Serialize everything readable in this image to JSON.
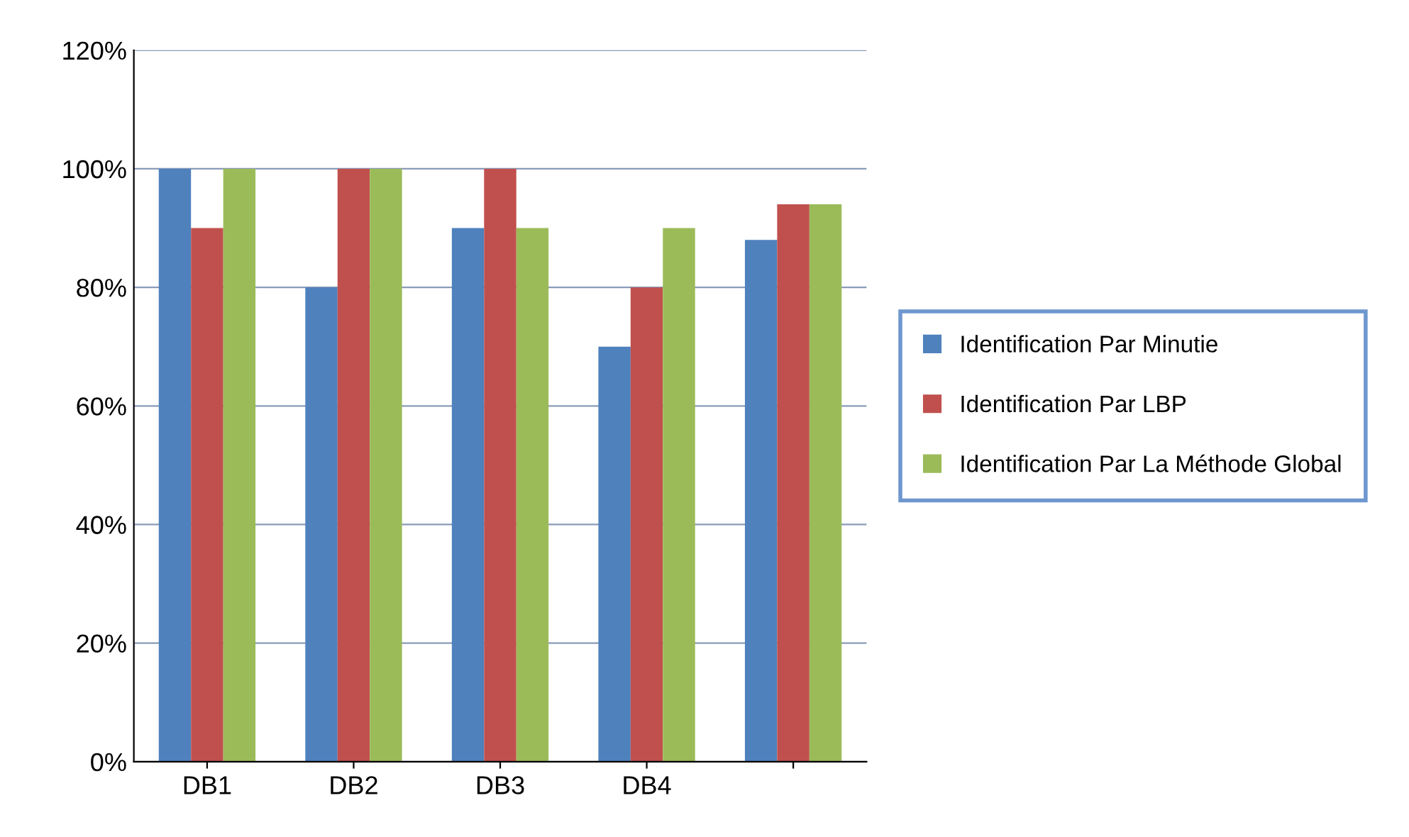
{
  "chart_data": {
    "type": "bar",
    "categories": [
      "DB1",
      "DB2",
      "DB3",
      "DB4",
      null
    ],
    "series": [
      {
        "name": "Identification Par Minutie",
        "color": "#4f81bd",
        "values": [
          100,
          80,
          90,
          70,
          88
        ]
      },
      {
        "name": "Identification Par LBP",
        "color": "#c0504d",
        "values": [
          90,
          100,
          100,
          80,
          94
        ]
      },
      {
        "name": "Identification Par La Méthode Global",
        "color": "#9bbb59",
        "values": [
          100,
          100,
          90,
          90,
          94
        ]
      }
    ],
    "ylim": [
      0,
      120
    ],
    "yticks": [
      {
        "value": 0,
        "label": "0%"
      },
      {
        "value": 20,
        "label": "20%"
      },
      {
        "value": 40,
        "label": "40%"
      },
      {
        "value": 60,
        "label": "60%"
      },
      {
        "value": 80,
        "label": "80%"
      },
      {
        "value": 100,
        "label": "100%"
      },
      {
        "value": 120,
        "label": "120%"
      }
    ],
    "grid": "y",
    "legend": "right"
  }
}
